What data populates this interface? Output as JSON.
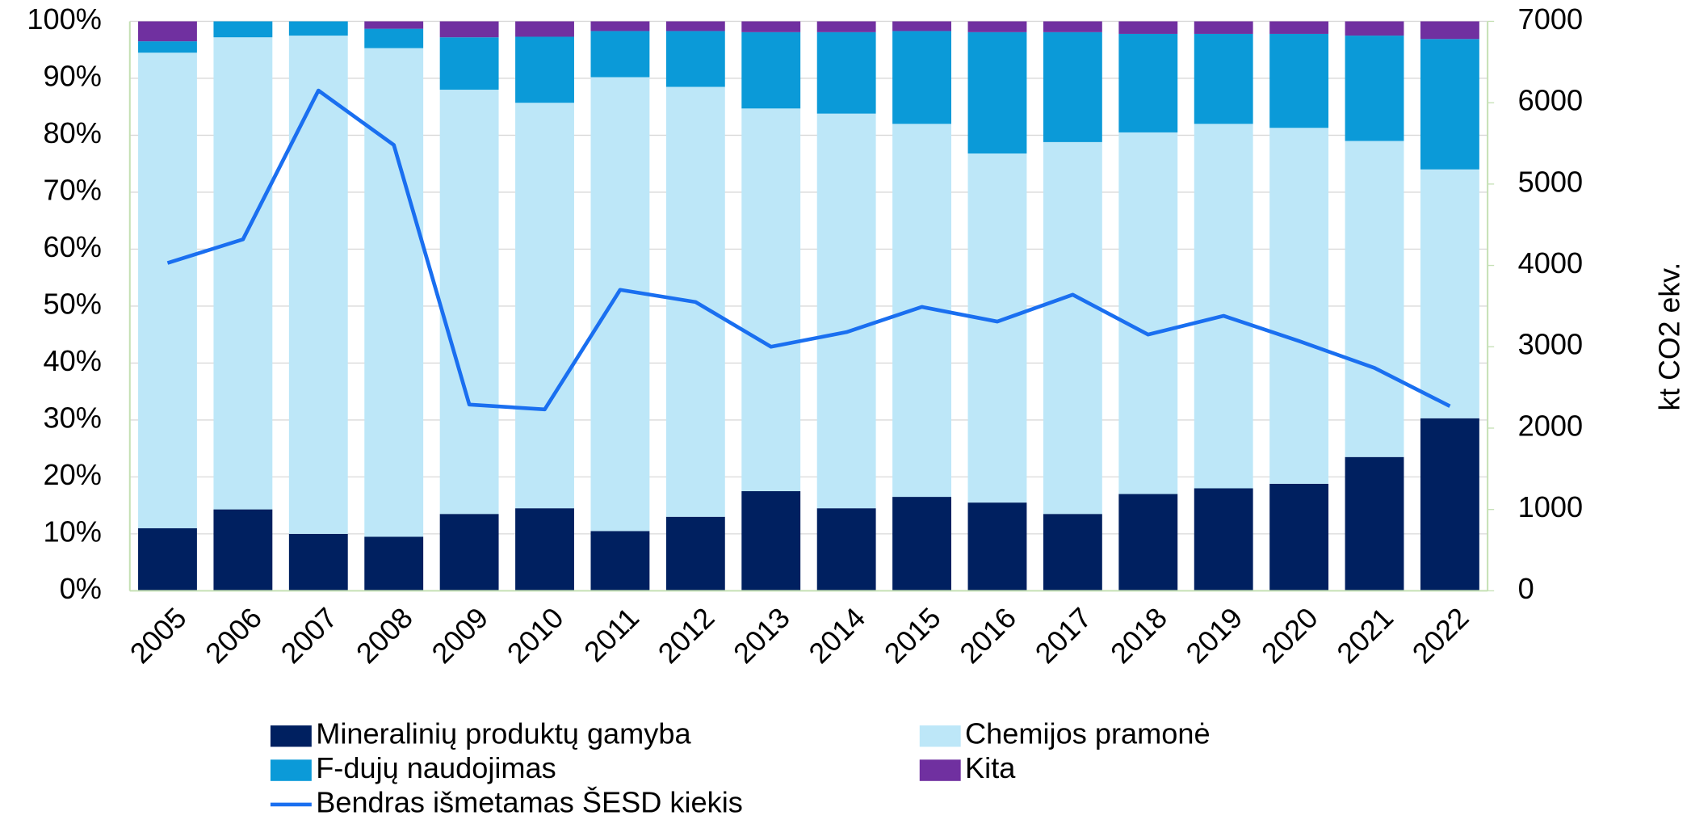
{
  "chart_data": {
    "type": "bar",
    "stacked": true,
    "categories": [
      "2005",
      "2006",
      "2007",
      "2008",
      "2009",
      "2010",
      "2011",
      "2012",
      "2013",
      "2014",
      "2015",
      "2016",
      "2017",
      "2018",
      "2019",
      "2020",
      "2021",
      "2022"
    ],
    "series": [
      {
        "name": "Mineralinių produktų gamyba",
        "color": "#002060",
        "values": [
          11,
          14.3,
          10,
          9.5,
          13.5,
          14.5,
          10.5,
          13,
          17.5,
          14.5,
          16.5,
          15.5,
          13.5,
          17,
          18,
          18.8,
          23.5,
          30.3
        ]
      },
      {
        "name": "Chemijos pramonė",
        "color": "#bde7f8",
        "values": [
          83.5,
          82.9,
          87.5,
          85.8,
          74.5,
          71.2,
          79.7,
          75.5,
          67.2,
          69.3,
          65.5,
          61.3,
          65.3,
          63.5,
          64,
          62.5,
          55.5,
          43.7
        ]
      },
      {
        "name": "F-dujų naudojimas",
        "color": "#0b9ad8",
        "values": [
          2,
          2.8,
          2.5,
          3.4,
          9.2,
          11.6,
          8.1,
          9.8,
          13.4,
          14.3,
          16.3,
          21.3,
          19.3,
          17.3,
          15.8,
          16.5,
          18.5,
          22.9
        ]
      },
      {
        "name": "Kita",
        "color": "#7030a0",
        "values": [
          3.5,
          0,
          0,
          1.3,
          2.8,
          2.7,
          1.7,
          1.7,
          1.9,
          1.9,
          1.7,
          1.9,
          1.9,
          2.2,
          2.2,
          2.2,
          2.5,
          3.1
        ]
      },
      {
        "name": "Bendras išmetamas ŠESD kiekis",
        "color": "#1a6ff0",
        "type": "line",
        "axis": "y2",
        "values": [
          4030,
          4320,
          6150,
          5480,
          2290,
          2230,
          3700,
          3550,
          3000,
          3180,
          3490,
          3310,
          3640,
          3150,
          3380,
          3070,
          2740,
          2270
        ]
      }
    ],
    "ylim": [
      0,
      100
    ],
    "yticks": [
      {
        "value": 0,
        "label": "0%"
      },
      {
        "value": 10,
        "label": "10%"
      },
      {
        "value": 20,
        "label": "20%"
      },
      {
        "value": 30,
        "label": "30%"
      },
      {
        "value": 40,
        "label": "40%"
      },
      {
        "value": 50,
        "label": "50%"
      },
      {
        "value": 60,
        "label": "60%"
      },
      {
        "value": 70,
        "label": "70%"
      },
      {
        "value": 80,
        "label": "80%"
      },
      {
        "value": 90,
        "label": "90%"
      },
      {
        "value": 100,
        "label": "100%"
      }
    ],
    "y2lim": [
      0,
      7000
    ],
    "y2ticks": [
      0,
      1000,
      2000,
      3000,
      4000,
      5000,
      6000,
      7000
    ],
    "y2label": "kt CO2 ekv.",
    "grid": true,
    "legend": "bottom"
  }
}
